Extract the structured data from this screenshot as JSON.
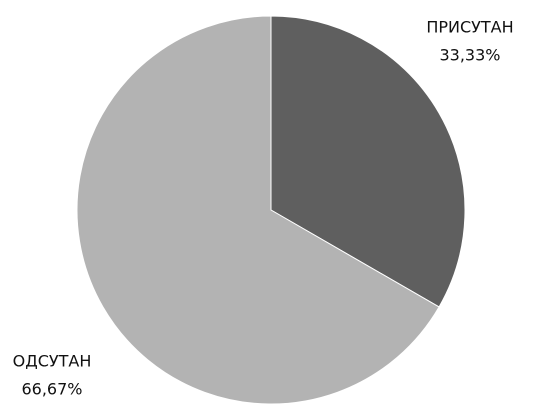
{
  "chart_data": {
    "type": "pie",
    "categories": [
      "ПРИСУТАН",
      "ОДСУТАН"
    ],
    "values": [
      33.33,
      66.67
    ],
    "value_labels": [
      "33,33%",
      "66,67%"
    ],
    "colors": [
      "#5f5f5f",
      "#b3b3b3"
    ]
  }
}
